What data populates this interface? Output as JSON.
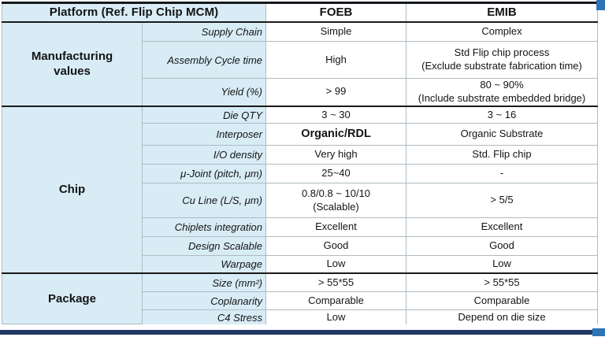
{
  "header": {
    "platform_label": "Platform (Ref. Flip Chip MCM)",
    "foeb_label": "FOEB",
    "emib_label": "EMIB"
  },
  "sections": [
    {
      "name": "Manufacturing\nvalues",
      "rows": [
        {
          "label": "Supply Chain",
          "foeb": "Simple",
          "emib": "Complex"
        },
        {
          "label": "Assembly Cycle time",
          "foeb": "High",
          "emib": "Std Flip chip process\n(Exclude substrate fabrication time)"
        },
        {
          "label": "Yield (%)",
          "foeb": "> 99",
          "emib": "80 ~ 90%\n(Include substrate embedded bridge)"
        }
      ]
    },
    {
      "name": "Chip",
      "rows": [
        {
          "label": "Die QTY",
          "foeb": "3 ~ 30",
          "emib": "3 ~ 16"
        },
        {
          "label": "Interposer",
          "foeb": "Organic/RDL",
          "emib": "Organic Substrate",
          "foeb_emphasis": true
        },
        {
          "label": "I/O density",
          "foeb": "Very high",
          "emib": "Std. Flip chip"
        },
        {
          "label": "μ-Joint (pitch, μm)",
          "foeb": "25~40",
          "emib": "-"
        },
        {
          "label": "Cu Line (L/S, μm)",
          "foeb": "0.8/0.8 ~ 10/10\n(Scalable)",
          "emib": "> 5/5"
        },
        {
          "label": "Chiplets integration",
          "foeb": "Excellent",
          "emib": "Excellent"
        },
        {
          "label": "Design Scalable",
          "foeb": "Good",
          "emib": "Good"
        },
        {
          "label": "Warpage",
          "foeb": "Low",
          "emib": "Low"
        }
      ]
    },
    {
      "name": "Package",
      "rows": [
        {
          "label": "Size (mm²)",
          "foeb": "> 55*55",
          "emib": "> 55*55"
        },
        {
          "label": "Coplanarity",
          "foeb": "Comparable",
          "emib": "Comparable"
        },
        {
          "label": "C4 Stress",
          "foeb": "Low",
          "emib": "Depend on die size"
        }
      ]
    }
  ],
  "colors": {
    "cell_blue": "#d8ecf6",
    "accent_blue": "#2e74b5",
    "bottom_navy": "#1f3864",
    "border_dark": "#1a1a1a",
    "border_light": "#aebbc2"
  }
}
